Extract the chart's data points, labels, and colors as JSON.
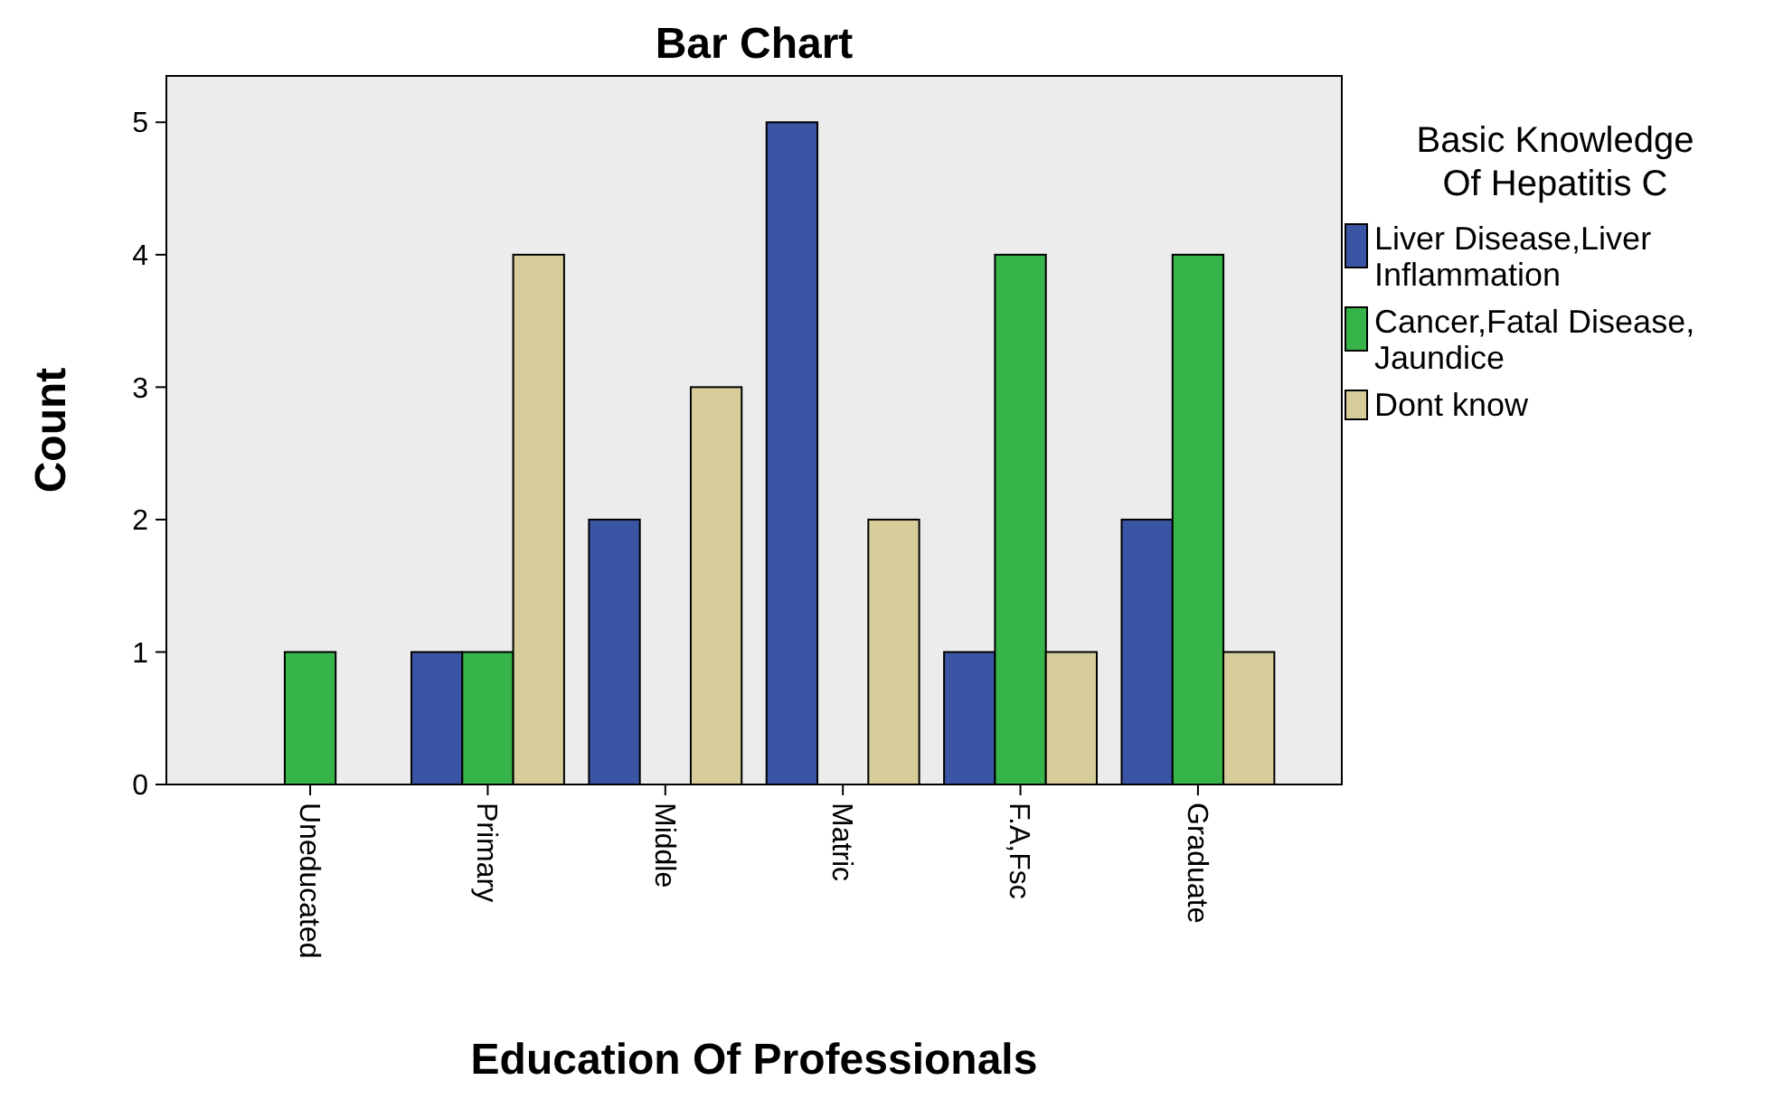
{
  "chart_data": {
    "type": "bar",
    "title": "Bar Chart",
    "xlabel": "Education Of Professionals",
    "ylabel": "Count",
    "legend_title": "Basic Knowledge Of Hepatitis C",
    "categories": [
      "Uneducated",
      "Primary",
      "Middle",
      "Matric",
      "F.A,Fsc",
      "Graduate"
    ],
    "series": [
      {
        "name": "Liver Disease,Liver Inflammation",
        "color": "#3b55a5",
        "values": [
          null,
          1,
          2,
          5,
          1,
          2
        ]
      },
      {
        "name": "Cancer,Fatal Disease,Jaundice",
        "color": "#36b44a",
        "values": [
          1,
          1,
          null,
          null,
          4,
          4
        ]
      },
      {
        "name": "Dont know",
        "color": "#d6cd9a",
        "values": [
          null,
          4,
          3,
          2,
          1,
          1
        ]
      }
    ],
    "ylim": [
      0,
      5.35
    ],
    "yticks": [
      0,
      1,
      2,
      3,
      4,
      5
    ],
    "grid": false,
    "legend": "right"
  }
}
